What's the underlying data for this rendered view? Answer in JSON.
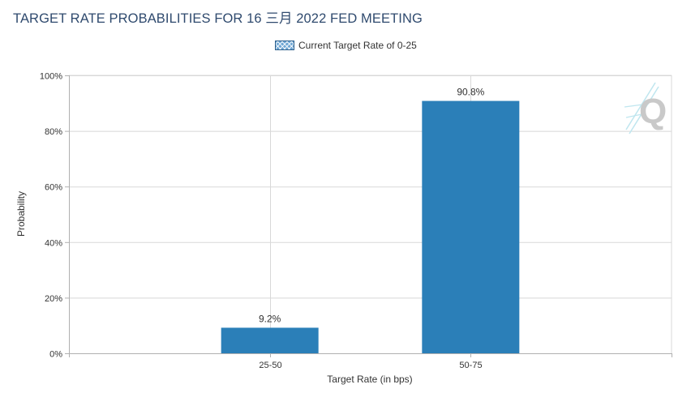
{
  "title": "TARGET RATE PROBABILITIES FOR 16 三月 2022 FED MEETING",
  "legend": {
    "label": "Current Target Rate of 0-25"
  },
  "watermark": {
    "letter": "Q"
  },
  "colors": {
    "bar": "#2b7fb8",
    "grid": "#d8d8d8",
    "axis": "#b0b0b0",
    "title": "#2f4a6e"
  },
  "chart_data": {
    "type": "bar",
    "title": "TARGET RATE PROBABILITIES FOR 16 三月 2022 FED MEETING",
    "xlabel": "Target Rate (in bps)",
    "ylabel": "Probability",
    "categories": [
      "25-50",
      "50-75"
    ],
    "series": [
      {
        "name": "Current Target Rate of 0-25",
        "values": [
          9.2,
          90.8
        ]
      }
    ],
    "data_labels": [
      "9.2%",
      "90.8%"
    ],
    "ylim": [
      0,
      100
    ],
    "yticks": [
      0,
      20,
      40,
      60,
      80,
      100
    ],
    "ytick_labels": [
      "0%",
      "20%",
      "40%",
      "60%",
      "80%",
      "100%"
    ],
    "grid": true,
    "legend_position": "top-center"
  }
}
